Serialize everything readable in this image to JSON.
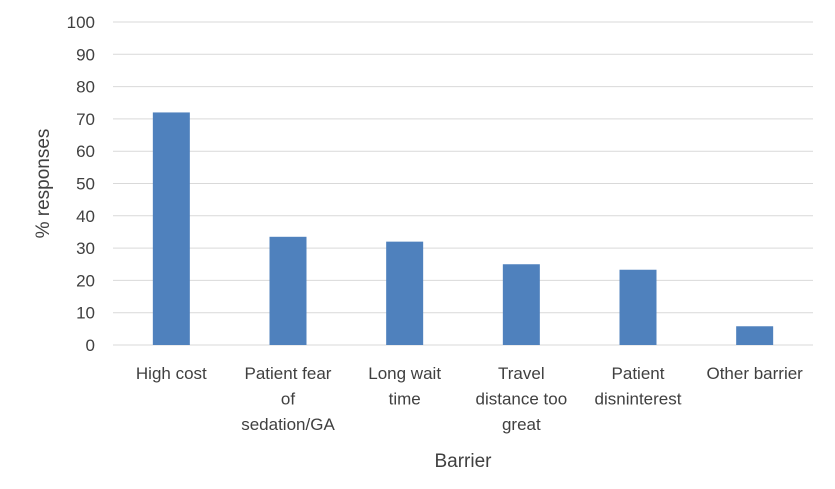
{
  "chart_data": {
    "type": "bar",
    "categories": [
      [
        "High cost"
      ],
      [
        "Patient fear",
        "of",
        "sedation/GA"
      ],
      [
        "Long wait",
        "time"
      ],
      [
        "Travel",
        "distance too",
        "great"
      ],
      [
        "Patient",
        "disninterest"
      ],
      [
        "Other barrier"
      ]
    ],
    "values": [
      72,
      33.5,
      32,
      25,
      23.3,
      5.8
    ],
    "xlabel": "Barrier",
    "ylabel": "% responses",
    "ylim": [
      0,
      100
    ],
    "yticks": [
      0,
      10,
      20,
      30,
      40,
      50,
      60,
      70,
      80,
      90,
      100
    ],
    "grid": true,
    "bar_color": "#4F81BD",
    "grid_color": "#D9D9D9"
  }
}
